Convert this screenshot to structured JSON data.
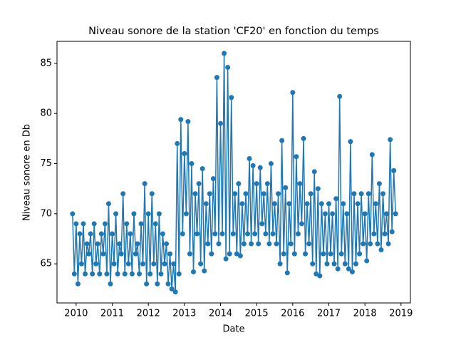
{
  "chart_data": {
    "type": "line",
    "title": "Niveau sonore de la station 'CF20' en fonction du temps",
    "x_label": "Date",
    "y_label": "Niveau sonore en Db",
    "x": [
      2009.9,
      2009.95,
      2010,
      2010.05,
      2010.1,
      2010.15,
      2010.2,
      2010.25,
      2010.3,
      2010.35,
      2010.4,
      2010.45,
      2010.5,
      2010.55,
      2010.6,
      2010.65,
      2010.7,
      2010.75,
      2010.8,
      2010.85,
      2010.9,
      2010.95,
      2011,
      2011.05,
      2011.1,
      2011.15,
      2011.2,
      2011.25,
      2011.3,
      2011.35,
      2011.4,
      2011.45,
      2011.5,
      2011.55,
      2011.6,
      2011.65,
      2011.7,
      2011.75,
      2011.8,
      2011.85,
      2011.9,
      2011.95,
      2012,
      2012.05,
      2012.1,
      2012.15,
      2012.2,
      2012.25,
      2012.3,
      2012.35,
      2012.4,
      2012.45,
      2012.5,
      2012.55,
      2012.6,
      2012.65,
      2012.7,
      2012.75,
      2012.8,
      2012.85,
      2012.9,
      2012.95,
      2013,
      2013.05,
      2013.1,
      2013.15,
      2013.2,
      2013.25,
      2013.3,
      2013.35,
      2013.4,
      2013.45,
      2013.5,
      2013.55,
      2013.6,
      2013.65,
      2013.7,
      2013.75,
      2013.8,
      2013.85,
      2013.9,
      2013.95,
      2014,
      2014.05,
      2014.1,
      2014.15,
      2014.2,
      2014.25,
      2014.3,
      2014.35,
      2014.4,
      2014.45,
      2014.5,
      2014.55,
      2014.6,
      2014.65,
      2014.7,
      2014.75,
      2014.8,
      2014.85,
      2014.9,
      2014.95,
      2015,
      2015.05,
      2015.1,
      2015.15,
      2015.2,
      2015.25,
      2015.3,
      2015.35,
      2015.4,
      2015.45,
      2015.5,
      2015.55,
      2015.6,
      2015.65,
      2015.7,
      2015.75,
      2015.8,
      2015.85,
      2015.9,
      2015.95,
      2016,
      2016.05,
      2016.1,
      2016.15,
      2016.2,
      2016.25,
      2016.3,
      2016.35,
      2016.4,
      2016.45,
      2016.5,
      2016.55,
      2016.6,
      2016.65,
      2016.7,
      2016.75,
      2016.8,
      2016.85,
      2016.9,
      2016.95,
      2017,
      2017.05,
      2017.1,
      2017.15,
      2017.2,
      2017.25,
      2017.3,
      2017.35,
      2017.4,
      2017.45,
      2017.5,
      2017.55,
      2017.6,
      2017.65,
      2017.7,
      2017.75,
      2017.8,
      2017.85,
      2017.9,
      2017.95,
      2018,
      2018.05,
      2018.1,
      2018.15,
      2018.2,
      2018.25,
      2018.3,
      2018.35,
      2018.4,
      2018.45,
      2018.5,
      2018.55,
      2018.6,
      2018.65,
      2018.7,
      2018.75,
      2018.8,
      2018.85
    ],
    "values": [
      70,
      64,
      69,
      63,
      68,
      65,
      69,
      64,
      67,
      66,
      68,
      64,
      69,
      65,
      67,
      64,
      68,
      66,
      69,
      64,
      71,
      63,
      68,
      65,
      70,
      64,
      67,
      66,
      72,
      64,
      69,
      65,
      68,
      64,
      70,
      66,
      67,
      64,
      69,
      65,
      73,
      63,
      70,
      64,
      72,
      65,
      69,
      63,
      70,
      64,
      68,
      65,
      67,
      63,
      66,
      62.5,
      65,
      62.2,
      77,
      64,
      79.4,
      68,
      76,
      70,
      79.2,
      66,
      75,
      64.2,
      72,
      68,
      73,
      65,
      74.5,
      64.3,
      71,
      67,
      72,
      66,
      73.5,
      68,
      83.6,
      67,
      79,
      68,
      86,
      65.5,
      84.6,
      66,
      81.6,
      68,
      72,
      66,
      73,
      65.8,
      71,
      67,
      72,
      68,
      75.5,
      67,
      74.8,
      68,
      73,
      67,
      74.6,
      69,
      72,
      68,
      73,
      67,
      75,
      68,
      71,
      67,
      72,
      65,
      77.3,
      66,
      72.6,
      64.1,
      71,
      67,
      82.1,
      66,
      75.7,
      68,
      73,
      69,
      77.5,
      66,
      71,
      67,
      72,
      65,
      74.2,
      64,
      72.5,
      63.8,
      71,
      66,
      70,
      65,
      71,
      66,
      70,
      65,
      71.5,
      64.5,
      81.7,
      66,
      71,
      65,
      70,
      64.5,
      77.2,
      64.2,
      72,
      65,
      71,
      66,
      72,
      67,
      70,
      65.3,
      72,
      67,
      75.9,
      68,
      71,
      67,
      73,
      66.4,
      72,
      68,
      70,
      67,
      77.4,
      68.2,
      74.3,
      70
    ],
    "color": "#1f77b4",
    "xlim": [
      2009.47,
      2019.26
    ],
    "xticks": [
      2010,
      2011,
      2012,
      2013,
      2014,
      2015,
      2016,
      2017,
      2018,
      2019
    ],
    "ylim": [
      61.1,
      87.2
    ],
    "yticks": [
      65,
      70,
      75,
      80,
      85
    ]
  }
}
